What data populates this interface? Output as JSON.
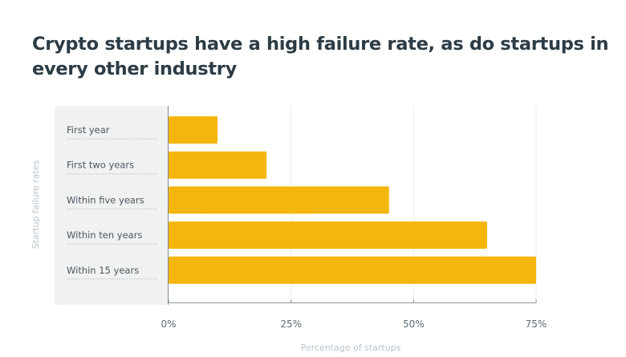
{
  "chart_data": {
    "type": "bar",
    "orientation": "horizontal",
    "title": "Crypto startups have a high failure rate, as do startups in every other industry",
    "categories": [
      "First year",
      "First two years",
      "Within five years",
      "Within ten years",
      "Within 15 years"
    ],
    "values": [
      10,
      20,
      45,
      65,
      75
    ],
    "xlabel": "Percentage of startups",
    "ylabel": "Startup failure rates",
    "xlim": [
      0,
      75
    ],
    "xticks": [
      "0%",
      "25%",
      "50%",
      "75%"
    ],
    "grid": true,
    "bar_color": "#f4b50c"
  }
}
